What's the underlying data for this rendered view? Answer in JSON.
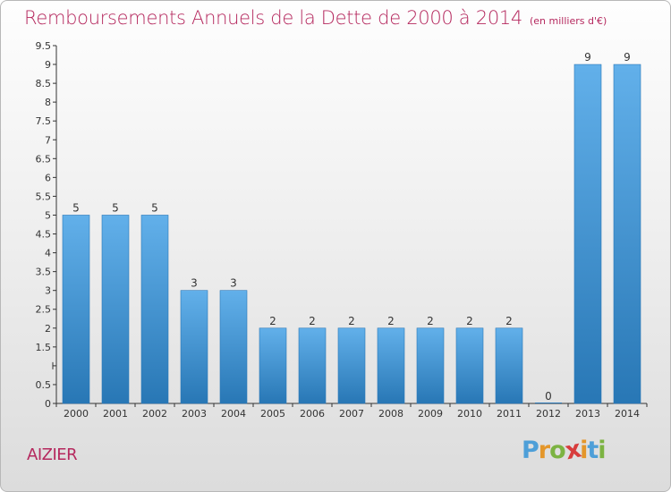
{
  "header": {
    "title": "Remboursements Annuels de la Dette de 2000 à 2014",
    "subtitle": "(en milliers d'€)"
  },
  "commune": "AIZIER",
  "logo": {
    "letters": [
      "P",
      "r",
      "o",
      "x",
      "i",
      "t",
      "i"
    ],
    "colors": [
      "#4e9fd8",
      "#e4962a",
      "#7cb342",
      "#d73c3c",
      "#e4962a",
      "#4e9fd8",
      "#7cb342"
    ]
  },
  "colors": {
    "title": "#b5285e",
    "bar_light": "#62b0ea",
    "bar_dark": "#2877b5",
    "axis": "#333333"
  },
  "chart_data": {
    "type": "bar",
    "title": "Remboursements Annuels de la Dette de 2000 à 2014",
    "subtitle": "(en milliers d'€)",
    "categories": [
      "2000",
      "2001",
      "2002",
      "2003",
      "2004",
      "2005",
      "2006",
      "2007",
      "2008",
      "2009",
      "2010",
      "2011",
      "2012",
      "2013",
      "2014"
    ],
    "values": [
      5,
      5,
      5,
      3,
      3,
      2,
      2,
      2,
      2,
      2,
      2,
      2,
      0,
      9,
      9
    ],
    "value_labels": [
      "5",
      "5",
      "5",
      "3",
      "3",
      "2",
      "2",
      "2",
      "2",
      "2",
      "2",
      "2",
      "0",
      "9",
      "9"
    ],
    "ylim": [
      0,
      9.5
    ],
    "yticks": [
      0,
      0.5,
      1,
      1.5,
      2,
      2.5,
      3,
      3.5,
      4,
      4.5,
      5,
      5.5,
      6,
      6.5,
      7,
      7.5,
      8,
      8.5,
      9,
      9.5
    ],
    "ytick_labels": [
      "0",
      "0.5",
      "",
      "1.5",
      "2",
      "2.5",
      "3",
      "3.5",
      "4",
      "4.5",
      "5",
      "5.5",
      "6",
      "6.5",
      "7",
      "7.5",
      "8",
      "8.5",
      "9",
      "9.5"
    ],
    "xlabel": "",
    "ylabel": "",
    "grid": false,
    "legend": "none"
  }
}
